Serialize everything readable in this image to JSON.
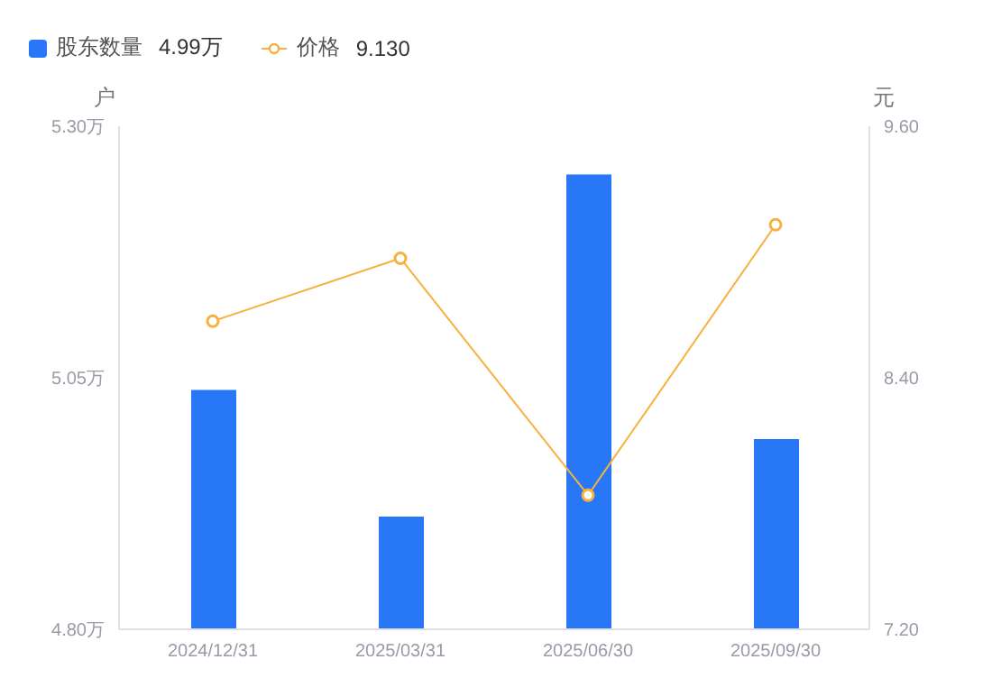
{
  "chart_data": {
    "type": "bar",
    "categories": [
      "2024/12/31",
      "2025/03/31",
      "2025/06/30",
      "2025/09/30"
    ],
    "series": [
      {
        "name": "股东数量",
        "color": "#2877f6",
        "values": [
          5.038,
          4.912,
          5.252,
          4.989
        ]
      },
      {
        "name": "价格",
        "type": "line",
        "axis": "y2",
        "color": "#f7b23e",
        "marker": "circle",
        "values": [
          8.67,
          8.97,
          7.84,
          9.13
        ]
      }
    ],
    "ylabel": "户",
    "y2label": "元",
    "ylim": [
      4.8,
      5.3
    ],
    "yticks": [
      {
        "value": 4.8,
        "label": "4.80万"
      },
      {
        "value": 5.05,
        "label": "5.05万"
      },
      {
        "value": 5.3,
        "label": "5.30万"
      }
    ],
    "y2lim": [
      7.2,
      9.6
    ],
    "y2ticks": [
      {
        "value": 7.2,
        "label": "7.20"
      },
      {
        "value": 8.4,
        "label": "8.40"
      },
      {
        "value": 9.6,
        "label": "9.60"
      }
    ],
    "legend": "top left",
    "annotations": [
      "4.99万",
      "9.130"
    ]
  }
}
